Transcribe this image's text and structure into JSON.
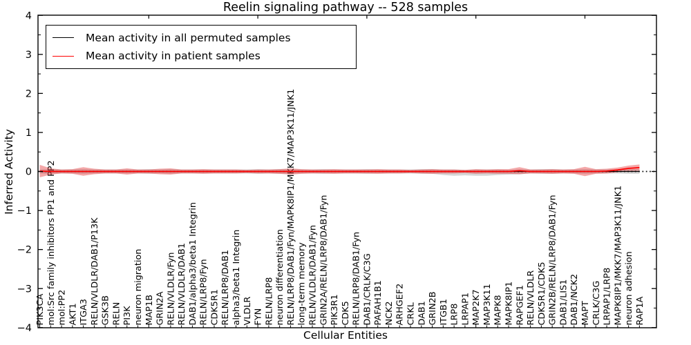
{
  "chart_data": {
    "type": "line",
    "title": "Reelin signaling pathway -- 528 samples",
    "xlabel": "Cellular Entities",
    "ylabel": "Inferred Activity",
    "ylim": [
      -4,
      4
    ],
    "yticks": [
      4,
      3,
      2,
      1,
      0,
      -1,
      -2,
      -3,
      -4
    ],
    "grid": false,
    "zero_line_style": "dotted",
    "legend_position": "upper left",
    "categories": [
      "PIK3CA",
      "mol:Src family inhibitors PP1 and PP2",
      "mol:PP2",
      "AKT1",
      "ITGA3",
      "RELN/VLDLR/DAB1/P13K",
      "GSK3B",
      "RELN",
      "PI3K",
      "neuron migration",
      "MAP1B",
      "GRIN2A",
      "RELN/VLDLR/Fyn",
      "RELN/VLDLR/DAB1",
      "DAB1/alpha3/beta1 Integrin",
      "RELN/LRP8/Fyn",
      "CDK5R1",
      "RELN/LRP8/DAB1",
      "alpha3/beta1 Integrin",
      "VLDLR",
      "FYN",
      "RELN/LRP8",
      "neuron differentiation",
      "RELN/LRP8/DAB1/Fyn/MAPK8IP1/MKK7/MAP3K11/JNK1",
      "long-term memory",
      "RELN/VLDLR/DAB1/Fyn",
      "GRIN2A/RELN/LRP8/DAB1/Fyn",
      "PIK3R1",
      "CDK5",
      "RELN/LRP8/DAB1/Fyn",
      "DAB1/CRLK/C3G",
      "PAFAH1B1",
      "NCK2",
      "ARHGEF2",
      "CRKL",
      "DAB1",
      "GRIN2B",
      "ITGB1",
      "LRP8",
      "LRPAP1",
      "MAP2K7",
      "MAP3K11",
      "MAPK8",
      "MAPK8IP1",
      "RAPGEF1",
      "RELN/VLDLR",
      "CDK5R1/CDK5",
      "GRIN2B/RELN/LRP8/DAB1/Fyn",
      "DAB1/LIS1",
      "DAB1/NCK2",
      "MAPT",
      "CRLK/C3G",
      "LRPAP1/LRP8",
      "MAPK8IP1/MKK7/MAP3K11/JNK1",
      "neuron adhesion",
      "RAP1A"
    ],
    "series": [
      {
        "name": "Mean activity in all permuted samples",
        "color": "#000000",
        "band_color": "rgba(120,120,120,0.30)",
        "values": [
          0,
          0,
          0,
          0,
          0,
          0,
          0,
          0,
          0,
          0,
          0,
          0,
          0,
          0,
          0,
          0,
          0,
          0,
          0,
          0,
          0,
          0,
          0,
          0,
          0,
          0,
          0,
          0,
          0,
          0,
          0,
          0,
          0,
          0,
          0,
          0,
          0,
          0,
          0,
          0,
          0,
          0,
          0,
          0,
          0,
          0,
          0,
          0,
          0,
          0,
          0,
          0,
          0,
          0,
          0,
          0
        ],
        "band_upper": [
          0.05,
          0.06,
          0.05,
          0.05,
          0.06,
          0.05,
          0.05,
          0.05,
          0.05,
          0.05,
          0.06,
          0.05,
          0.06,
          0.05,
          0.05,
          0.05,
          0.05,
          0.05,
          0.05,
          0.05,
          0.06,
          0.05,
          0.06,
          0.06,
          0.05,
          0.05,
          0.06,
          0.05,
          0.05,
          0.05,
          0.06,
          0.05,
          0.05,
          0.05,
          0.05,
          0.06,
          0.06,
          0.05,
          0.05,
          0.04,
          0.05,
          0.05,
          0.05,
          0.04,
          0.05,
          0.05,
          0.06,
          0.06,
          0.05,
          0.05,
          0.06,
          0.05,
          0.05,
          0.05,
          0.06,
          0.06
        ],
        "band_lower": [
          -0.05,
          -0.06,
          -0.05,
          -0.05,
          -0.06,
          -0.05,
          -0.05,
          -0.05,
          -0.05,
          -0.05,
          -0.06,
          -0.05,
          -0.06,
          -0.05,
          -0.05,
          -0.05,
          -0.05,
          -0.05,
          -0.05,
          -0.05,
          -0.06,
          -0.05,
          -0.06,
          -0.06,
          -0.05,
          -0.05,
          -0.06,
          -0.05,
          -0.05,
          -0.05,
          -0.06,
          -0.05,
          -0.05,
          -0.05,
          -0.05,
          -0.06,
          -0.06,
          -0.09,
          -0.11,
          -0.1,
          -0.11,
          -0.11,
          -0.09,
          -0.08,
          -0.07,
          -0.05,
          -0.06,
          -0.06,
          -0.05,
          -0.05,
          -0.06,
          -0.05,
          -0.05,
          -0.05,
          -0.06,
          -0.06
        ]
      },
      {
        "name": "Mean activity in patient samples",
        "color": "#ff0000",
        "band_color": "rgba(227,26,28,0.38)",
        "values": [
          0.01,
          0,
          0,
          0,
          0,
          0,
          0,
          0,
          0,
          0,
          0,
          0,
          0,
          0,
          0,
          0,
          0,
          0,
          0,
          0,
          0,
          0,
          0,
          0,
          0,
          0,
          0,
          0,
          0,
          0,
          0,
          0,
          0,
          0,
          0,
          0,
          0,
          0,
          0,
          0,
          0,
          0,
          0,
          0,
          0.02,
          0,
          0,
          0,
          0,
          0,
          0,
          0,
          0.01,
          0.04,
          0.08,
          0.1
        ],
        "band_upper": [
          0.17,
          0.08,
          0.05,
          0.06,
          0.11,
          0.07,
          0.05,
          0.05,
          0.08,
          0.05,
          0.05,
          0.07,
          0.08,
          0.05,
          0.05,
          0.06,
          0.05,
          0.05,
          0.05,
          0.04,
          0.05,
          0.05,
          0.06,
          0.08,
          0.06,
          0.05,
          0.05,
          0.06,
          0.05,
          0.05,
          0.05,
          0.06,
          0.05,
          0.05,
          0.04,
          0.05,
          0.06,
          0.05,
          0.05,
          0.04,
          0.06,
          0.05,
          0.06,
          0.06,
          0.11,
          0.05,
          0.05,
          0.06,
          0.05,
          0.06,
          0.12,
          0.06,
          0.07,
          0.1,
          0.15,
          0.18
        ],
        "band_lower": [
          -0.15,
          -0.08,
          -0.05,
          -0.06,
          -0.11,
          -0.07,
          -0.05,
          -0.05,
          -0.08,
          -0.05,
          -0.05,
          -0.07,
          -0.08,
          -0.05,
          -0.05,
          -0.06,
          -0.05,
          -0.05,
          -0.05,
          -0.04,
          -0.05,
          -0.05,
          -0.06,
          -0.08,
          -0.06,
          -0.05,
          -0.05,
          -0.06,
          -0.05,
          -0.05,
          -0.05,
          -0.06,
          -0.05,
          -0.05,
          -0.04,
          -0.05,
          -0.06,
          -0.05,
          -0.05,
          -0.04,
          -0.06,
          -0.05,
          -0.06,
          -0.06,
          -0.07,
          -0.05,
          -0.05,
          -0.06,
          -0.05,
          -0.06,
          -0.12,
          -0.06,
          -0.05,
          -0.02,
          0.01,
          0.02
        ]
      }
    ]
  }
}
